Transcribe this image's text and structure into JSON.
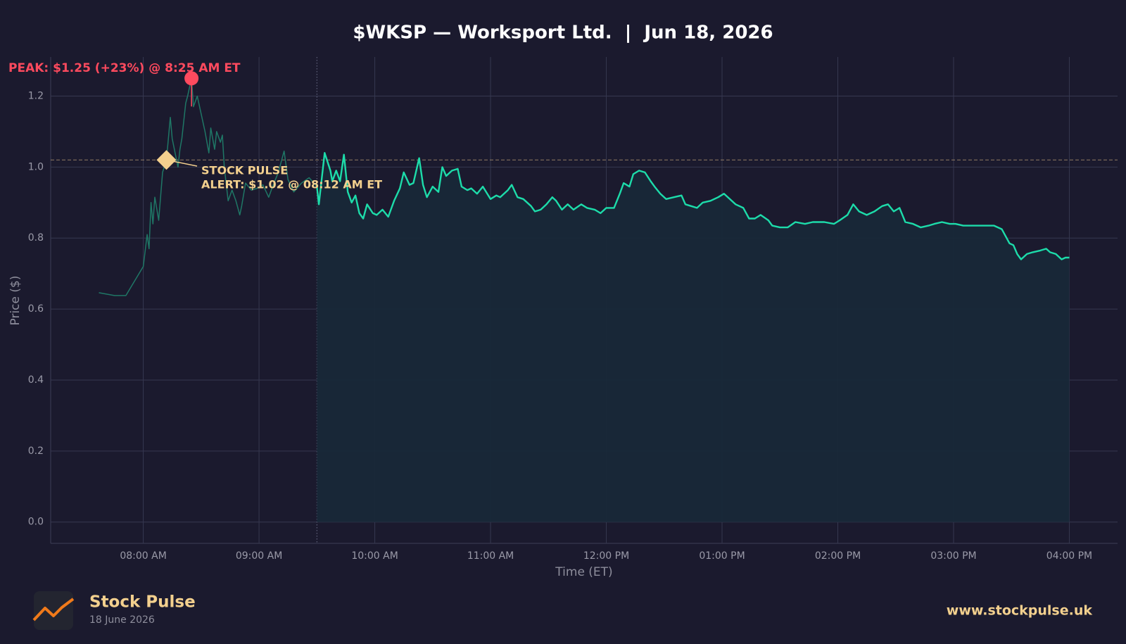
{
  "chart_data": {
    "type": "line",
    "title": "$WKSP — Worksport Ltd.  |  Jun 18, 2026",
    "x_label": "Time (ET)",
    "y_label": "Price ($)",
    "xlim": [
      "07:12",
      "16:25"
    ],
    "xticks": [
      {
        "value": "08:00",
        "label": "08:00 AM"
      },
      {
        "value": "09:00",
        "label": "09:00 AM"
      },
      {
        "value": "10:00",
        "label": "10:00 AM"
      },
      {
        "value": "11:00",
        "label": "11:00 AM"
      },
      {
        "value": "12:00",
        "label": "12:00 PM"
      },
      {
        "value": "13:00",
        "label": "01:00 PM"
      },
      {
        "value": "14:00",
        "label": "02:00 PM"
      },
      {
        "value": "15:00",
        "label": "03:00 PM"
      },
      {
        "value": "16:00",
        "label": "04:00 PM"
      }
    ],
    "ylim": [
      -0.06,
      1.31
    ],
    "yticks": [
      {
        "value": 0,
        "label": "0.0"
      },
      0.2,
      0.4,
      0.6,
      0.8,
      {
        "value": 1,
        "label": "1.0"
      },
      1.2
    ],
    "grid": true,
    "market_open": "09:30",
    "series": [
      {
        "color": "#1f7766",
        "x": [
          "07:37",
          "07:45",
          "07:51",
          "08:00",
          "08:02",
          "08:03",
          "08:04",
          "08:05",
          "08:06",
          "08:08",
          "08:10",
          "08:12",
          "08:14",
          "08:15",
          "08:18",
          "08:19",
          "08:20",
          "08:22",
          "08:23",
          "08:25",
          "08:26",
          "08:28",
          "08:30",
          "08:32",
          "08:34",
          "08:35",
          "08:37",
          "08:38",
          "08:40",
          "08:41",
          "08:42",
          "08:44",
          "08:46",
          "08:48",
          "08:50",
          "08:51",
          "08:53",
          "08:56",
          "08:59",
          "09:02",
          "09:05",
          "09:07",
          "09:10",
          "09:13",
          "09:15",
          "09:18",
          "09:22",
          "09:26",
          "09:30"
        ],
        "values": [
          0.646,
          0.638,
          0.638,
          0.72,
          0.81,
          0.77,
          0.9,
          0.84,
          0.915,
          0.85,
          0.985,
          1.02,
          1.14,
          1.08,
          1.0,
          1.05,
          1.08,
          1.18,
          1.2,
          1.25,
          1.17,
          1.2,
          1.15,
          1.1,
          1.04,
          1.11,
          1.05,
          1.1,
          1.07,
          1.09,
          1.0,
          0.905,
          0.935,
          0.905,
          0.865,
          0.89,
          0.955,
          0.935,
          0.94,
          0.95,
          0.915,
          0.945,
          0.985,
          1.045,
          0.965,
          0.93,
          0.955,
          0.97,
          0.945
        ]
      },
      {
        "color": "#1ddcaa",
        "fill": "#182838",
        "x": [
          "09:30",
          "09:31",
          "09:34",
          "09:37",
          "09:38",
          "09:40",
          "09:42",
          "09:44",
          "09:46",
          "09:48",
          "09:50",
          "09:52",
          "09:54",
          "09:56",
          "09:59",
          "10:01",
          "10:04",
          "10:07",
          "10:10",
          "10:13",
          "10:15",
          "10:18",
          "10:20",
          "10:23",
          "10:25",
          "10:27",
          "10:30",
          "10:33",
          "10:35",
          "10:37",
          "10:40",
          "10:43",
          "10:45",
          "10:48",
          "10:50",
          "10:53",
          "10:56",
          "11:00",
          "11:03",
          "11:05",
          "11:09",
          "11:11",
          "11:14",
          "11:17",
          "11:21",
          "11:23",
          "11:26",
          "11:29",
          "11:32",
          "11:34",
          "11:37",
          "11:40",
          "11:43",
          "11:47",
          "11:50",
          "11:54",
          "11:57",
          "12:00",
          "12:04",
          "12:07",
          "12:09",
          "12:12",
          "12:14",
          "12:17",
          "12:20",
          "12:23",
          "12:25",
          "12:28",
          "12:31",
          "12:35",
          "12:39",
          "12:41",
          "12:44",
          "12:47",
          "12:50",
          "12:54",
          "12:58",
          "13:01",
          "13:04",
          "13:07",
          "13:11",
          "13:14",
          "13:17",
          "13:20",
          "13:24",
          "13:26",
          "13:30",
          "13:34",
          "13:38",
          "13:43",
          "13:47",
          "13:53",
          "13:58",
          "14:01",
          "14:05",
          "14:08",
          "14:11",
          "14:15",
          "14:19",
          "14:23",
          "14:26",
          "14:29",
          "14:32",
          "14:35",
          "14:39",
          "14:43",
          "14:47",
          "14:50",
          "14:54",
          "14:58",
          "15:01",
          "15:05",
          "15:09",
          "15:13",
          "15:17",
          "15:21",
          "15:25",
          "15:27",
          "15:29",
          "15:31",
          "15:33",
          "15:35",
          "15:38",
          "15:41",
          "15:45",
          "15:48",
          "15:50",
          "15:53",
          "15:56",
          "15:58",
          "16:00"
        ],
        "values": [
          0.945,
          0.895,
          1.04,
          0.99,
          0.96,
          0.99,
          0.96,
          1.035,
          0.93,
          0.9,
          0.92,
          0.87,
          0.855,
          0.895,
          0.87,
          0.865,
          0.88,
          0.86,
          0.905,
          0.94,
          0.985,
          0.95,
          0.955,
          1.025,
          0.95,
          0.915,
          0.945,
          0.93,
          1.0,
          0.975,
          0.99,
          0.995,
          0.945,
          0.935,
          0.94,
          0.925,
          0.945,
          0.91,
          0.92,
          0.915,
          0.935,
          0.95,
          0.915,
          0.91,
          0.89,
          0.875,
          0.88,
          0.895,
          0.915,
          0.905,
          0.88,
          0.895,
          0.88,
          0.895,
          0.885,
          0.88,
          0.87,
          0.885,
          0.885,
          0.925,
          0.955,
          0.945,
          0.98,
          0.99,
          0.985,
          0.96,
          0.945,
          0.925,
          0.91,
          0.915,
          0.92,
          0.895,
          0.89,
          0.885,
          0.9,
          0.905,
          0.915,
          0.925,
          0.91,
          0.895,
          0.885,
          0.855,
          0.855,
          0.865,
          0.85,
          0.835,
          0.83,
          0.83,
          0.845,
          0.84,
          0.845,
          0.845,
          0.84,
          0.85,
          0.865,
          0.895,
          0.875,
          0.865,
          0.875,
          0.89,
          0.895,
          0.875,
          0.885,
          0.845,
          0.84,
          0.83,
          0.835,
          0.84,
          0.845,
          0.84,
          0.84,
          0.835,
          0.835,
          0.835,
          0.835,
          0.835,
          0.825,
          0.805,
          0.785,
          0.78,
          0.755,
          0.74,
          0.755,
          0.76,
          0.765,
          0.77,
          0.76,
          0.755,
          0.74,
          0.745,
          0.745
        ]
      }
    ],
    "peak": {
      "label": "PEAK: $1.25 (+23%) @ 8:25 AM ET",
      "x": "08:25",
      "value": 1.25,
      "color": "#ff4a5e"
    },
    "alert": {
      "label_lines": [
        "STOCK PULSE",
        "ALERT: $1.02 @ 08:12 AM ET"
      ],
      "x": "08:12",
      "value": 1.02,
      "color": "#f3d08e"
    }
  },
  "footer": {
    "brand": "Stock Pulse",
    "date": "18 June 2026",
    "url": "www.stockpulse.uk"
  }
}
